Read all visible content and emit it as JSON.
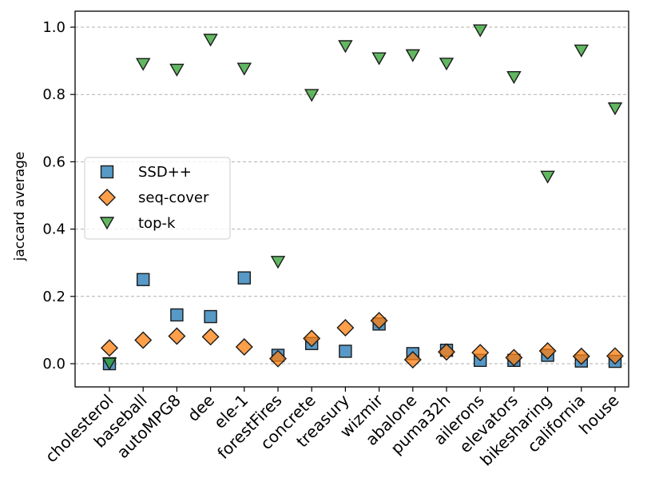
{
  "chart_data": {
    "type": "scatter",
    "title": "",
    "xlabel": "",
    "ylabel": "jaccard average",
    "ylim": [
      -0.065,
      1.05
    ],
    "yticks": [
      0.0,
      0.2,
      0.4,
      0.6,
      0.8,
      1.0
    ],
    "ytick_labels": [
      "0.0",
      "0.2",
      "0.4",
      "0.6",
      "0.8",
      "1.0"
    ],
    "grid": "y dashed",
    "legend_position": "center-left",
    "categories": [
      "cholesterol",
      "baseball",
      "autoMPG8",
      "dee",
      "ele-1",
      "forestFires",
      "concrete",
      "treasury",
      "wizmir",
      "abalone",
      "puma32h",
      "ailerons",
      "elevators",
      "bikesharing",
      "california",
      "house"
    ],
    "series": [
      {
        "name": "SSD++",
        "marker": "square",
        "color": "#1f77b4",
        "values": [
          0.0,
          0.25,
          0.145,
          0.14,
          0.255,
          0.025,
          0.06,
          0.037,
          0.118,
          0.03,
          0.04,
          0.01,
          0.01,
          0.025,
          0.008,
          0.007
        ]
      },
      {
        "name": "seq-cover",
        "marker": "diamond",
        "color": "#ff7f0e",
        "values": [
          0.047,
          0.07,
          0.082,
          0.08,
          0.05,
          0.015,
          0.075,
          0.107,
          0.128,
          0.012,
          0.035,
          0.033,
          0.018,
          0.038,
          0.022,
          0.023
        ]
      },
      {
        "name": "top-k",
        "marker": "triangle-down",
        "color": "#2ca02c",
        "values": [
          0.0,
          0.89,
          0.873,
          0.962,
          0.876,
          0.302,
          0.798,
          0.943,
          0.907,
          0.916,
          0.891,
          0.99,
          0.851,
          0.555,
          0.93,
          0.758
        ]
      }
    ]
  }
}
